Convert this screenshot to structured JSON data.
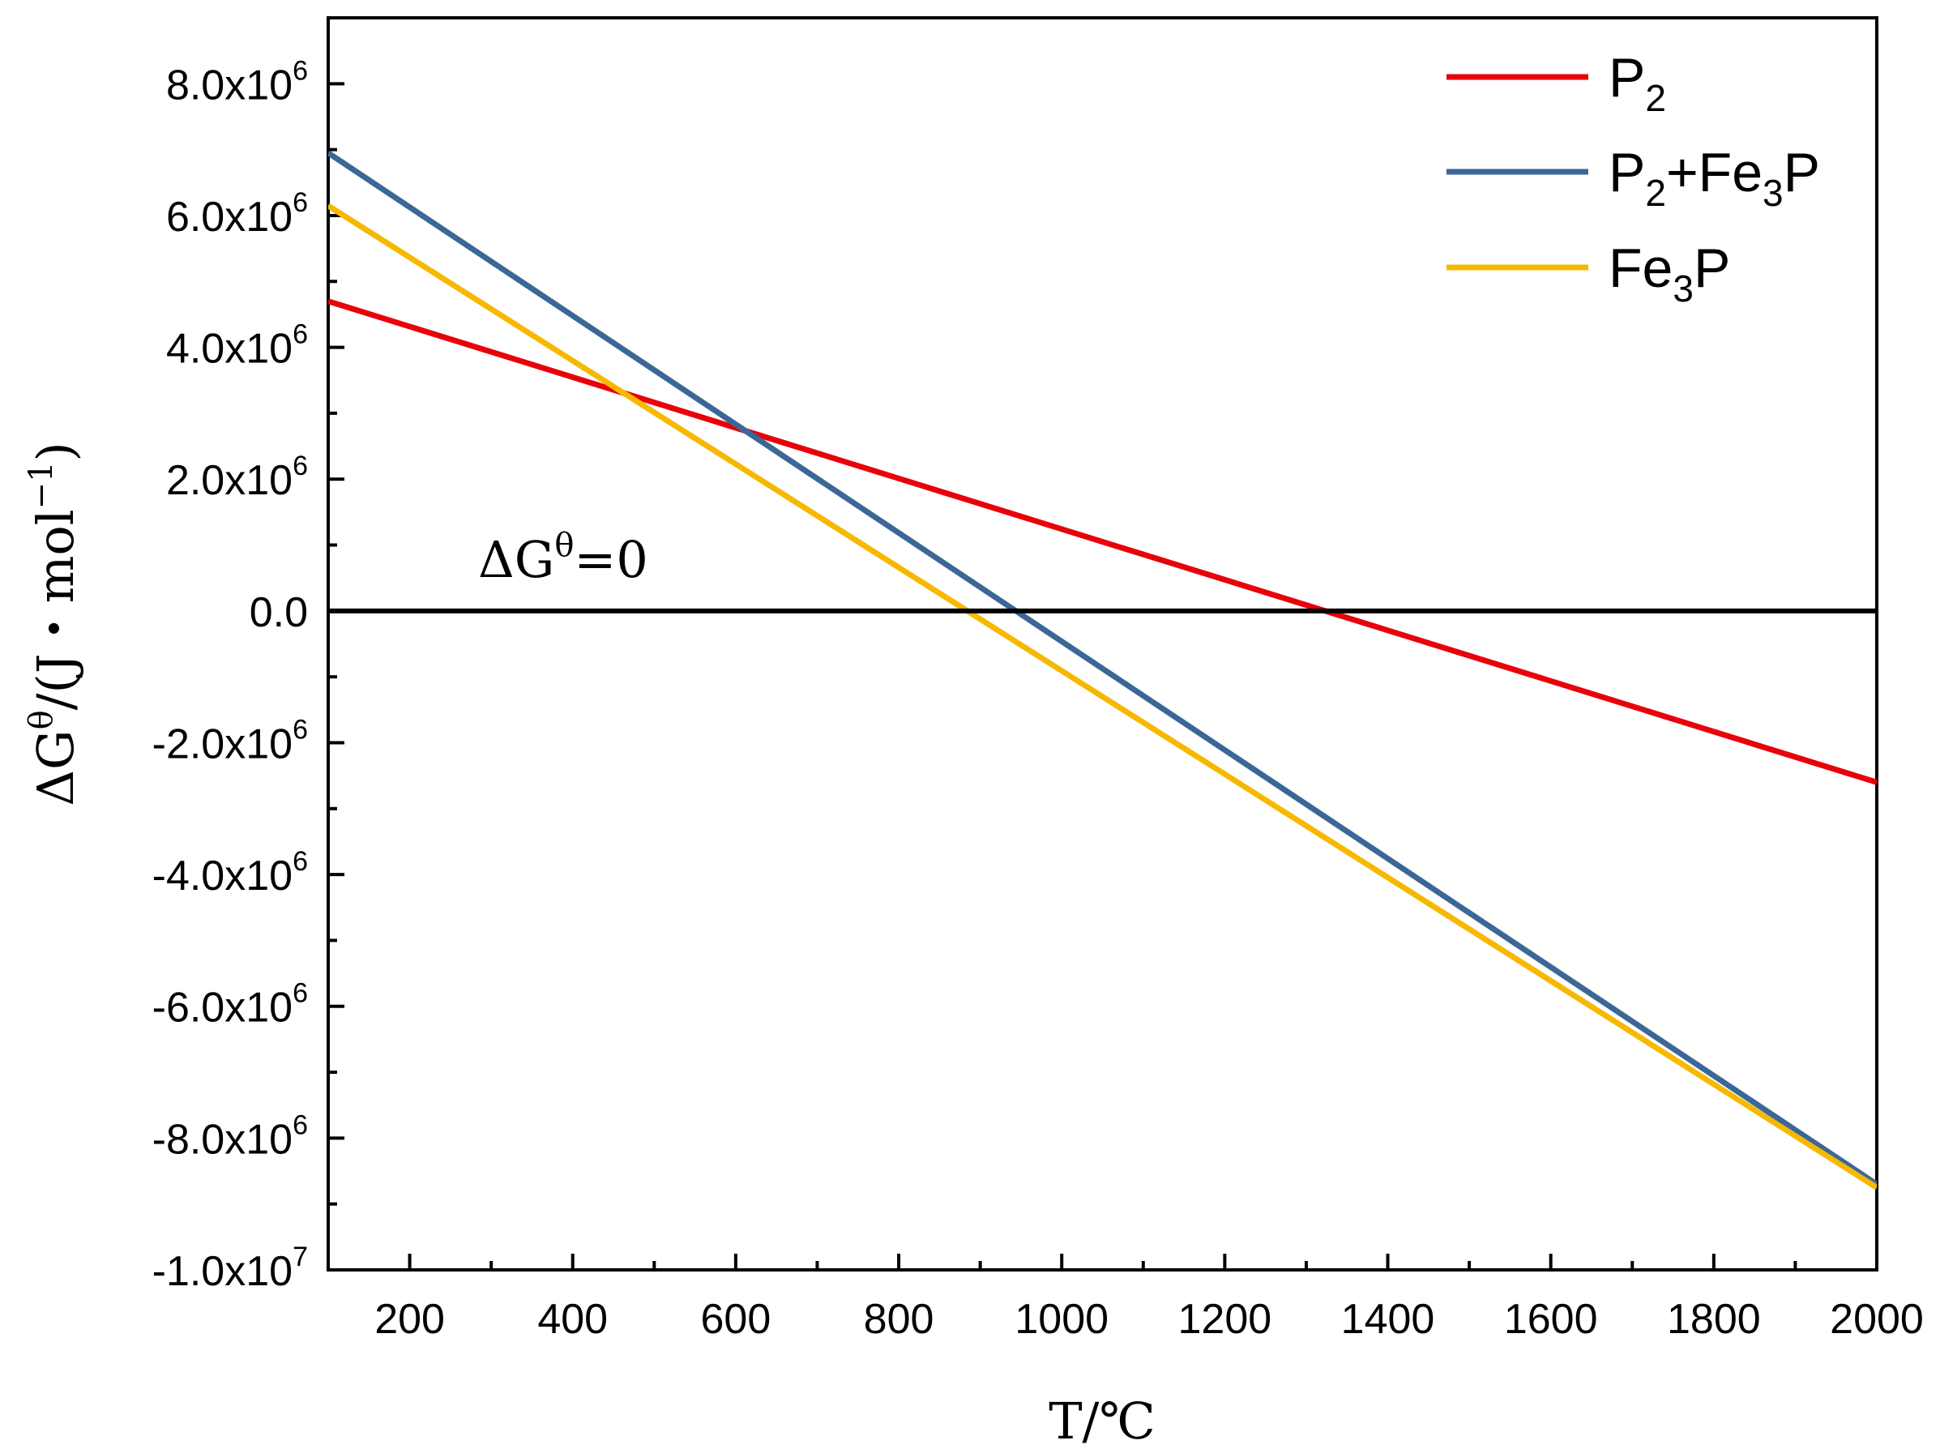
{
  "chart_data": {
    "type": "line",
    "title": "",
    "xlabel_parts": [
      "T/",
      "℃"
    ],
    "ylabel_parts": [
      "ΔG",
      "θ",
      "/(J・mol",
      "−1",
      ")"
    ],
    "xlim": [
      100,
      2000
    ],
    "ylim": [
      -10000000,
      9000000
    ],
    "x_ticks": [
      200,
      400,
      600,
      800,
      1000,
      1200,
      1400,
      1600,
      1800,
      2000
    ],
    "x_tick_labels": [
      "200",
      "400",
      "600",
      "800",
      "1000",
      "1200",
      "1400",
      "1600",
      "1800",
      "2000"
    ],
    "y_ticks": [
      {
        "value": 8000000,
        "mantissa": "8.0x10",
        "exp": "6"
      },
      {
        "value": 6000000,
        "mantissa": "6.0x10",
        "exp": "6"
      },
      {
        "value": 4000000,
        "mantissa": "4.0x10",
        "exp": "6"
      },
      {
        "value": 2000000,
        "mantissa": "2.0x10",
        "exp": "6"
      },
      {
        "value": 0,
        "mantissa": "0.0",
        "exp": ""
      },
      {
        "value": -2000000,
        "mantissa": "-2.0x10",
        "exp": "6"
      },
      {
        "value": -4000000,
        "mantissa": "-4.0x10",
        "exp": "6"
      },
      {
        "value": -6000000,
        "mantissa": "-6.0x10",
        "exp": "6"
      },
      {
        "value": -8000000,
        "mantissa": "-8.0x10",
        "exp": "6"
      },
      {
        "value": -10000000,
        "mantissa": "-1.0x10",
        "exp": "7"
      }
    ],
    "series": [
      {
        "name_parts": [
          "P",
          "2",
          ""
        ],
        "color": "#e8000b",
        "x": [
          100,
          2000
        ],
        "y": [
          4700000,
          -2600000
        ]
      },
      {
        "name_parts": [
          "P",
          "2",
          "+Fe",
          "3",
          "P"
        ],
        "color": "#3a6796",
        "x": [
          100,
          2000
        ],
        "y": [
          6950000,
          -8700000
        ]
      },
      {
        "name_parts": [
          "Fe",
          "3",
          "P"
        ],
        "color": "#f7b800",
        "x": [
          100,
          2000
        ],
        "y": [
          6150000,
          -8750000
        ]
      }
    ],
    "reference_line": {
      "y": 0,
      "color": "#000000",
      "label_parts": [
        "ΔG",
        "θ",
        "=0"
      ]
    },
    "legend_location": "top-right",
    "grid": false
  }
}
